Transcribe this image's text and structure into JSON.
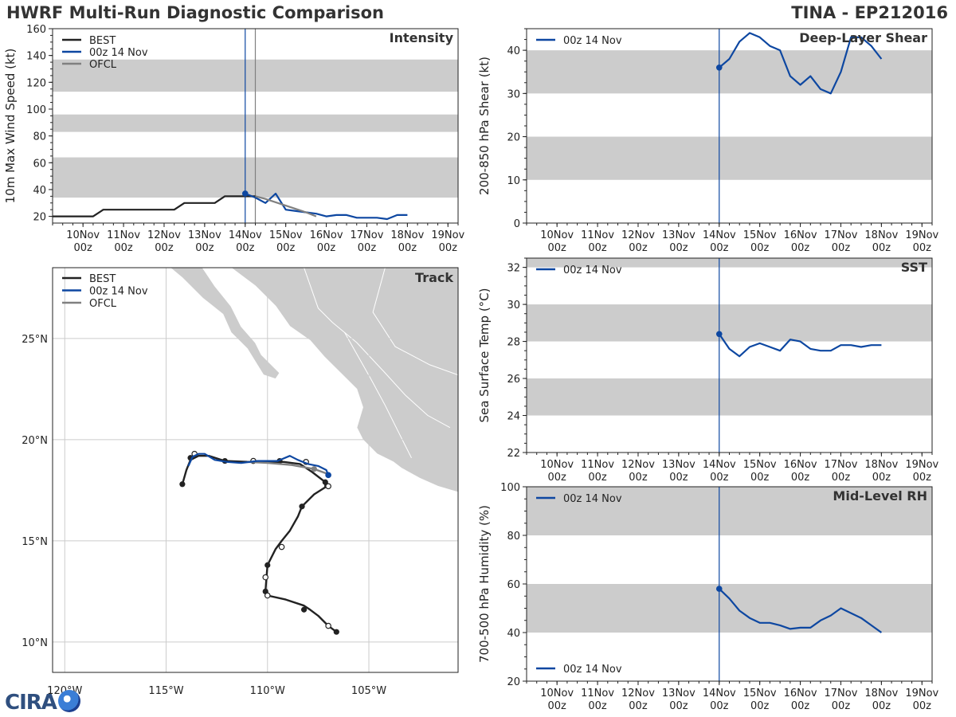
{
  "header": {
    "title": "HWRF Multi-Run Diagnostic Comparison",
    "storm": "TINA - EP212016"
  },
  "logo": {
    "text": "CIRA"
  },
  "colors": {
    "best": "#222222",
    "run": "#0d47a1",
    "ofcl": "#808080",
    "band": "#cccccc",
    "land": "#cccccc",
    "grid": "#cccccc"
  },
  "time_axis": {
    "labels": [
      [
        "10Nov",
        "00z"
      ],
      [
        "11Nov",
        "00z"
      ],
      [
        "12Nov",
        "00z"
      ],
      [
        "13Nov",
        "00z"
      ],
      [
        "14Nov",
        "00z"
      ],
      [
        "15Nov",
        "00z"
      ],
      [
        "16Nov",
        "00z"
      ],
      [
        "17Nov",
        "00z"
      ],
      [
        "18Nov",
        "00z"
      ],
      [
        "19Nov",
        "00z"
      ]
    ]
  },
  "chart_data": [
    {
      "id": "intensity",
      "type": "line",
      "title": "Intensity",
      "ylabel": "10m Max Wind Speed (kt)",
      "xlim": [
        -0.75,
        9.25
      ],
      "ylim": [
        15,
        160
      ],
      "yticks": [
        20,
        40,
        60,
        80,
        100,
        120,
        140,
        160
      ],
      "bands": [
        [
          34,
          64
        ],
        [
          83,
          96
        ],
        [
          113,
          137
        ]
      ],
      "vlines": [
        {
          "x": 4.0,
          "color": "run"
        },
        {
          "x": 4.25,
          "color": "ofcl"
        }
      ],
      "legend": [
        "BEST",
        "00z 14 Nov",
        "OFCL"
      ],
      "series": [
        {
          "name": "BEST",
          "color": "best",
          "x": [
            -0.75,
            0.25,
            0.5,
            1,
            1.5,
            2,
            2.25,
            2.5,
            2.75,
            3,
            3.25,
            3.5,
            3.75,
            4,
            4.25
          ],
          "y": [
            20,
            20,
            25,
            25,
            25,
            25,
            25,
            30,
            30,
            30,
            30,
            35,
            35,
            35,
            35
          ]
        },
        {
          "name": "00z 14 Nov",
          "color": "run",
          "marker_first": true,
          "x": [
            4,
            4.25,
            4.5,
            4.75,
            5,
            5.25,
            5.5,
            5.75,
            6,
            6.25,
            6.5,
            6.75,
            7,
            7.25,
            7.5,
            7.75,
            8
          ],
          "y": [
            37,
            34,
            30,
            37,
            25,
            24,
            23,
            22,
            20,
            21,
            21,
            19,
            19,
            19,
            18,
            21,
            21
          ]
        },
        {
          "name": "OFCL",
          "color": "ofcl",
          "x": [
            4.25,
            4.5,
            5,
            5.5,
            5.75
          ],
          "y": [
            35,
            33,
            28,
            23,
            20
          ]
        }
      ]
    },
    {
      "id": "shear",
      "type": "line",
      "title": "Deep-Layer Shear",
      "ylabel": "200-850 hPa Shear (kt)",
      "xlim": [
        -0.75,
        9.25
      ],
      "ylim": [
        0,
        45
      ],
      "yticks": [
        0,
        10,
        20,
        30,
        40
      ],
      "bands": [
        [
          10,
          20
        ],
        [
          30,
          40
        ]
      ],
      "vlines": [
        {
          "x": 4.0,
          "color": "run"
        }
      ],
      "legend": [
        "00z 14 Nov"
      ],
      "series": [
        {
          "name": "00z 14 Nov",
          "color": "run",
          "marker_first": true,
          "x": [
            4,
            4.25,
            4.5,
            4.75,
            5,
            5.25,
            5.5,
            5.75,
            6,
            6.25,
            6.5,
            6.75,
            7,
            7.25,
            7.5,
            7.75,
            8
          ],
          "y": [
            36,
            38,
            42,
            44,
            43,
            41,
            40,
            34,
            32,
            34,
            31,
            30,
            35,
            43,
            43,
            41,
            38
          ]
        }
      ]
    },
    {
      "id": "sst",
      "type": "line",
      "title": "SST",
      "ylabel": "Sea Surface Temp (°C)",
      "xlim": [
        -0.75,
        9.25
      ],
      "ylim": [
        22,
        32.5
      ],
      "yticks": [
        22,
        24,
        26,
        28,
        30,
        32
      ],
      "bands": [
        [
          24,
          26
        ],
        [
          28,
          30
        ],
        [
          32,
          32.5
        ]
      ],
      "vlines": [
        {
          "x": 4.0,
          "color": "run"
        }
      ],
      "legend": [
        "00z 14 Nov"
      ],
      "series": [
        {
          "name": "00z 14 Nov",
          "color": "run",
          "marker_first": true,
          "x": [
            4,
            4.25,
            4.5,
            4.75,
            5,
            5.25,
            5.5,
            5.75,
            6,
            6.25,
            6.5,
            6.75,
            7,
            7.25,
            7.5,
            7.75,
            8
          ],
          "y": [
            28.4,
            27.6,
            27.2,
            27.7,
            27.9,
            27.7,
            27.5,
            28.1,
            28.0,
            27.6,
            27.5,
            27.5,
            27.8,
            27.8,
            27.7,
            27.8,
            27.8
          ]
        }
      ]
    },
    {
      "id": "rh",
      "type": "line",
      "title": "Mid-Level RH",
      "ylabel": "700-500 hPa Humidity (%)",
      "xlim": [
        -0.75,
        9.25
      ],
      "ylim": [
        20,
        100
      ],
      "yticks": [
        20,
        40,
        60,
        80,
        100
      ],
      "bands": [
        [
          40,
          60
        ],
        [
          80,
          100
        ]
      ],
      "vlines": [
        {
          "x": 4.0,
          "color": "run"
        }
      ],
      "legend": [
        "00z 14 Nov"
      ],
      "series": [
        {
          "name": "00z 14 Nov",
          "color": "run",
          "marker_first": true,
          "x": [
            4,
            4.25,
            4.5,
            4.75,
            5,
            5.25,
            5.5,
            5.75,
            6,
            6.25,
            6.5,
            6.75,
            7,
            7.25,
            7.5,
            7.75,
            8
          ],
          "y": [
            58,
            54,
            49,
            46,
            44,
            44,
            43,
            41.5,
            42,
            42,
            45,
            47,
            50,
            48,
            46,
            43,
            40
          ]
        }
      ]
    },
    {
      "id": "track",
      "type": "map",
      "title": "Track",
      "lon_range": [
        -120.6,
        -100.6
      ],
      "lat_range": [
        8.5,
        28.5
      ],
      "lon_ticks": [
        -120,
        -115,
        -110,
        -105
      ],
      "lon_tick_labels": [
        "120°W",
        "115°W",
        "110°W",
        "105°W"
      ],
      "lat_ticks": [
        10,
        15,
        20,
        25
      ],
      "lat_tick_labels": [
        "10°N",
        "15°N",
        "20°N",
        "25°N"
      ],
      "legend": [
        "BEST",
        "00z 14 Nov",
        "OFCL"
      ],
      "best": {
        "lon": [
          -106.6,
          -107.0,
          -107.5,
          -107.9,
          -108.2,
          -109.1,
          -110.0,
          -110.1,
          -110.05,
          -110.0,
          -109.8,
          -109.6,
          -109.3,
          -108.9,
          -108.5,
          -108.3,
          -107.7,
          -107.15,
          -107.15,
          -107.8,
          -108.4,
          -109.2,
          -110.9,
          -112.1,
          -112.9,
          -113.4,
          -113.8,
          -114.0,
          -114.2
        ],
        "lat": [
          10.5,
          10.8,
          11.3,
          11.6,
          11.8,
          12.1,
          12.3,
          12.5,
          13.2,
          13.8,
          14.2,
          14.6,
          15.0,
          15.5,
          16.2,
          16.7,
          17.3,
          17.65,
          17.9,
          18.4,
          18.8,
          18.9,
          18.9,
          18.95,
          19.2,
          19.2,
          19.0,
          18.5,
          17.8
        ],
        "dots_lon": [
          -106.6,
          -108.2,
          -110.1,
          -110.0,
          -108.3,
          -107.15,
          -109.4,
          -112.1,
          -113.8,
          -114.2
        ],
        "dots_lat": [
          10.5,
          11.6,
          12.5,
          13.8,
          16.7,
          17.9,
          18.95,
          18.95,
          19.1,
          17.8
        ],
        "open_lon": [
          -107.0,
          -110.0,
          -110.1,
          -109.3,
          -107.0,
          -108.1,
          -110.7,
          -113.6
        ],
        "open_lat": [
          10.8,
          12.3,
          13.2,
          14.7,
          17.7,
          18.9,
          18.95,
          19.3
        ]
      },
      "run": {
        "lon": [
          -107.0,
          -107.1,
          -107.5,
          -108.0,
          -108.5,
          -108.9,
          -109.5,
          -110.5,
          -111.3,
          -112.0,
          -112.6,
          -113.1,
          -113.4,
          -113.7,
          -113.9
        ],
        "lat": [
          18.25,
          18.5,
          18.7,
          18.8,
          19.0,
          19.2,
          18.95,
          18.95,
          18.85,
          18.9,
          19.0,
          19.3,
          19.3,
          19.15,
          18.7
        ],
        "start_lon": -107.0,
        "start_lat": 18.25
      },
      "ofcl": {
        "lon": [
          -107.0,
          -107.7,
          -108.8,
          -110.0,
          -111.0
        ],
        "lat": [
          18.3,
          18.55,
          18.75,
          18.85,
          18.9
        ],
        "dot_lon": -107.7,
        "dot_lat": 18.55
      }
    }
  ]
}
